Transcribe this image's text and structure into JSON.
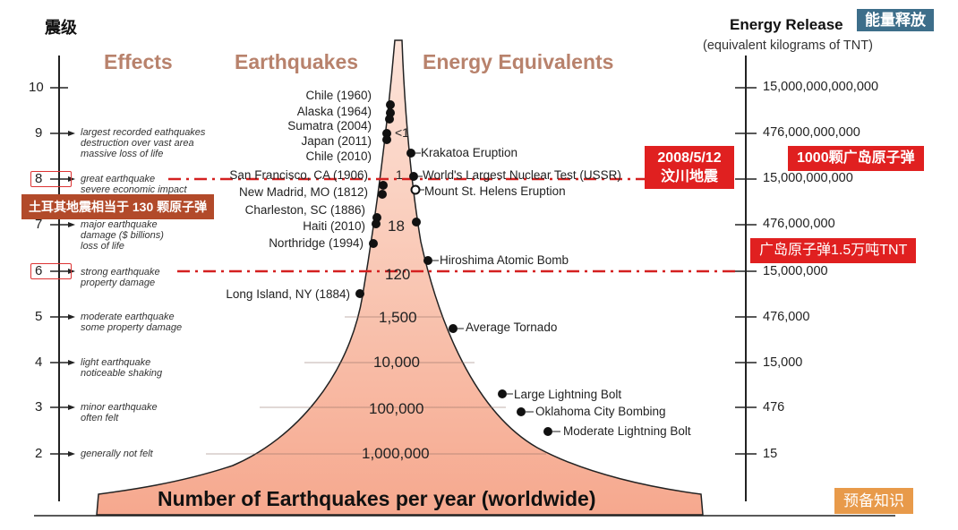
{
  "header": {
    "cn_magnitude": "震级",
    "effects": "Effects",
    "earthquakes": "Earthquakes",
    "energy_equivalents": "Energy Equivalents",
    "energy_release": "Energy Release",
    "energy_release_cn": "能量释放",
    "energy_unit": "(equivalent kilograms of TNT)"
  },
  "magnitudes": [
    "10",
    "9",
    "8",
    "7",
    "6",
    "5",
    "4",
    "3",
    "2"
  ],
  "effects": [
    "largest recorded eathquakes\ndestruction over vast area\nmassive loss of life",
    "great earthquake\nsevere economic impact",
    "major earthquake\ndamage ($ billions)\nloss of life",
    "strong earthquake\nproperty damage",
    "moderate earthquake\nsome property damage",
    "light earthquake\nnoticeable shaking",
    "minor earthquake\noften felt",
    "generally not felt"
  ],
  "earthquakes": [
    "Chile (1960)",
    "Alaska (1964)",
    "Sumatra (2004)",
    "Japan (2011)",
    "Chile (2010)",
    "San Francisco, CA (1906)",
    "New Madrid, MO (1812)",
    "Charleston, SC (1886)",
    "Haiti (2010)",
    "Northridge (1994)",
    "Long Island, NY (1884)"
  ],
  "equivalents": [
    "Krakatoa Eruption",
    "World's Largest Nuclear Test (USSR)",
    "Mount St. Helens Eruption",
    "Hiroshima Atomic Bomb",
    "Average Tornado",
    "Large Lightning Bolt",
    "Oklahoma City Bombing",
    "Moderate Lightning Bolt"
  ],
  "counts": [
    "<1",
    "1",
    "18",
    "120",
    "1,500",
    "10,000",
    "100,000",
    "1,000,000"
  ],
  "tnt": [
    "15,000,000,000,000",
    "476,000,000,000",
    "15,000,000,000",
    "476,000,000",
    "15,000,000",
    "476,000",
    "15,000",
    "476",
    "15"
  ],
  "footer": {
    "title": "Number of Earthquakes per year (worldwide)",
    "prior_knowledge": "预备知识"
  },
  "annotations": {
    "wenchuan_date": "2008/5/12",
    "wenchuan_name": "汶川地震",
    "hiroshima_1000": "1000颗广岛原子弹",
    "hiroshima_tnt": "广岛原子弹1.5万吨TNT",
    "turkey": "土耳其地震相当于 130 颗原子弹"
  },
  "colors": {
    "header": "#b8826c",
    "fill": "#f8b8a2",
    "fill_light": "#fde4da",
    "callout_red": "#e02020",
    "callout_brown": "#b24a2a",
    "title_box": "#3d6e8a",
    "prior_box": "#e89a4a"
  }
}
